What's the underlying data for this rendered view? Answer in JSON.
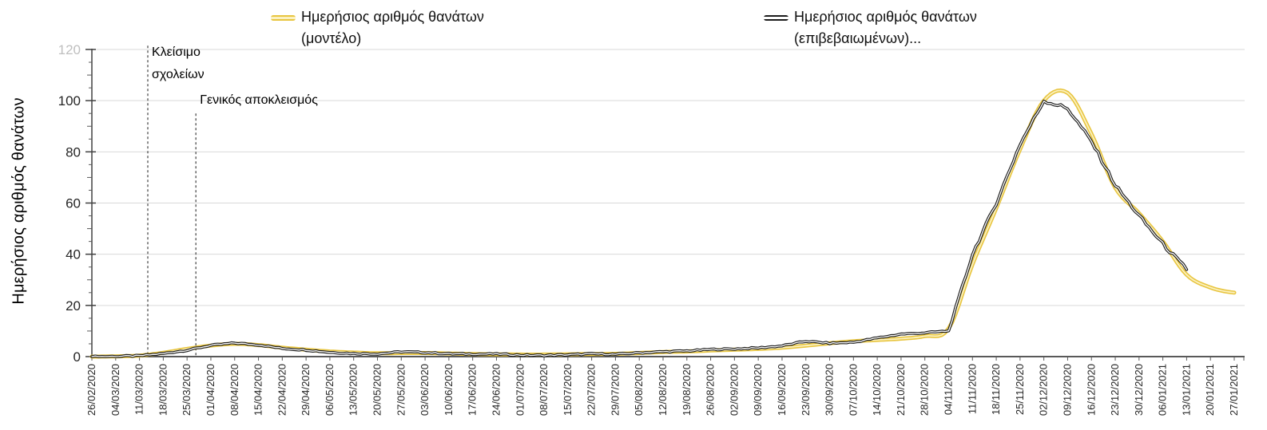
{
  "chart_data": {
    "type": "line",
    "title": "",
    "xlabel": "",
    "ylabel": "Ημερήσιος αριθμός θανάτων",
    "ylim": [
      0,
      120
    ],
    "grid": "horizontal",
    "legend_position": "top",
    "yticks": [
      {
        "label": "0",
        "value": 0
      },
      {
        "label": "20",
        "value": 20
      },
      {
        "label": "40",
        "value": 40
      },
      {
        "label": "60",
        "value": 60
      },
      {
        "label": "80",
        "value": 80
      },
      {
        "label": "100",
        "value": 100
      },
      {
        "label": "120",
        "value": 120,
        "muted": true
      }
    ],
    "ytick_minor_step": 5,
    "categories": [
      "26/02/2020",
      "04/03/2020",
      "11/03/2020",
      "18/03/2020",
      "25/03/2020",
      "01/04/2020",
      "08/04/2020",
      "15/04/2020",
      "22/04/2020",
      "29/04/2020",
      "06/05/2020",
      "13/05/2020",
      "20/05/2020",
      "27/05/2020",
      "03/06/2020",
      "10/06/2020",
      "17/06/2020",
      "24/06/2020",
      "01/07/2020",
      "08/07/2020",
      "15/07/2020",
      "22/07/2020",
      "29/07/2020",
      "05/08/2020",
      "12/08/2020",
      "19/08/2020",
      "26/08/2020",
      "02/09/2020",
      "09/09/2020",
      "16/09/2020",
      "23/09/2020",
      "30/09/2020",
      "07/10/2020",
      "14/10/2020",
      "21/10/2020",
      "28/10/2020",
      "04/11/2020",
      "11/11/2020",
      "18/11/2020",
      "25/11/2020",
      "02/12/2020",
      "09/12/2020",
      "16/12/2020",
      "23/12/2020",
      "30/12/2020",
      "06/01/2021",
      "13/01/2021",
      "20/01/2021",
      "27/01/2021"
    ],
    "series": [
      {
        "name": "Ημερήσιος αριθμός θανάτων (μοντέλο)",
        "style": "smooth",
        "color": "#E8C53F",
        "core_color": "#FBF1C0",
        "values": [
          0,
          0.1,
          0.4,
          1.5,
          3,
          4.3,
          5,
          4.5,
          3.5,
          2.7,
          2,
          1.6,
          1.3,
          1.4,
          1.4,
          1.2,
          1,
          0.9,
          0.8,
          0.8,
          0.9,
          1,
          1.1,
          1.4,
          1.8,
          2,
          2.4,
          2.7,
          3,
          3.5,
          4.3,
          5.2,
          6,
          6.5,
          7,
          8,
          11,
          36,
          58,
          81,
          100,
          103,
          87,
          66,
          56,
          45,
          32,
          27,
          25
        ]
      },
      {
        "name": "Ημερήσιος αριθμός θανάτων (επιβεβαιωμένων)",
        "style": "jagged",
        "color": "#1C1C1C",
        "core_color": "#FFFFFF",
        "values": [
          0,
          0.1,
          0.3,
          1.2,
          2.5,
          4.4,
          5.3,
          4.6,
          3.2,
          2.6,
          1.7,
          1.2,
          1.1,
          1.9,
          1.6,
          1.1,
          1,
          1,
          0.6,
          0.5,
          0.7,
          1.1,
          0.9,
          1.5,
          1.9,
          2.2,
          2.8,
          3,
          3.4,
          4.2,
          6,
          5.2,
          5.6,
          7.3,
          8.8,
          9.3,
          10,
          40,
          60,
          83,
          100,
          97,
          84,
          67,
          55,
          44,
          34,
          null,
          null
        ]
      }
    ],
    "legend": [
      {
        "line1": "Ημερήσιος αριθμός θανάτων",
        "line2": "(μοντέλο)"
      },
      {
        "line1": "Ημερήσιος αριθμός θανάτων",
        "line2": "(επιβεβαιωμένων)..."
      }
    ],
    "annotations": [
      {
        "id": "school-closing",
        "lines": [
          "Κλείσιμο",
          "σχολείων"
        ],
        "x_index": 2.35,
        "line_top_value": 121.5,
        "label_placement": "right"
      },
      {
        "id": "lockdown",
        "lines": [
          "Γενικός αποκλεισμός"
        ],
        "x_index": 4.37,
        "line_top_value": 95,
        "label_placement": "above"
      }
    ],
    "colors": {
      "gridline": "#D9D9D9",
      "x_axis": "#595959",
      "y_axis": "#404040",
      "tick": "#595959",
      "tick_label": "#262626",
      "muted_tick_label": "#BFBFBF",
      "annotation_line": "#3F3F3F",
      "background": "#FFFFFF"
    }
  }
}
